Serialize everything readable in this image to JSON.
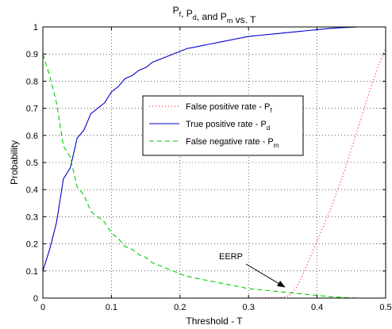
{
  "chart_data": {
    "type": "line",
    "title": {
      "parts": [
        {
          "text": "P",
          "sub": "f"
        },
        {
          "text": ", P",
          "sub": "d"
        },
        {
          "text": ", and P",
          "sub": "m"
        },
        {
          "text": " vs. T",
          "sub": ""
        }
      ]
    },
    "xlabel": "Threshold - T",
    "ylabel": "Probability",
    "xlim": [
      0,
      0.5
    ],
    "ylim": [
      0,
      1
    ],
    "xticks": [
      0,
      0.1,
      0.2,
      0.3,
      0.4,
      0.5
    ],
    "xtick_labels": [
      "0",
      "0.1",
      "0.2",
      "0.3",
      "0.4",
      "0.5"
    ],
    "yticks": [
      0,
      0.1,
      0.2,
      0.3,
      0.4,
      0.5,
      0.6,
      0.7,
      0.8,
      0.9,
      1
    ],
    "ytick_labels": [
      "0",
      "0.1",
      "0.2",
      "0.3",
      "0.4",
      "0.5",
      "0.6",
      "0.7",
      "0.8",
      "0.9",
      "1"
    ],
    "grid": true,
    "legend": {
      "placement": "center-right",
      "entries": [
        {
          "series": 0,
          "text": "False positive rate - P",
          "sub": "f"
        },
        {
          "series": 1,
          "text": "True positive rate - P",
          "sub": "d"
        },
        {
          "series": 2,
          "text": "False negative rate - P",
          "sub": "m"
        }
      ]
    },
    "series": [
      {
        "name": "False positive rate - Pf",
        "color": "#ff0000",
        "style": "dotted",
        "x": [
          0,
          0.1,
          0.2,
          0.3,
          0.35,
          0.36,
          0.37,
          0.38,
          0.39,
          0.4,
          0.41,
          0.42,
          0.43,
          0.44,
          0.45,
          0.46,
          0.47,
          0.48,
          0.49,
          0.5
        ],
        "y": [
          0,
          0,
          0,
          0,
          0.002,
          0.01,
          0.04,
          0.09,
          0.15,
          0.21,
          0.27,
          0.33,
          0.4,
          0.47,
          0.55,
          0.63,
          0.71,
          0.79,
          0.86,
          0.92
        ]
      },
      {
        "name": "True positive rate - Pd",
        "color": "#0000cc",
        "style": "solid",
        "x": [
          0,
          0.01,
          0.02,
          0.03,
          0.04,
          0.05,
          0.06,
          0.07,
          0.08,
          0.09,
          0.1,
          0.11,
          0.12,
          0.13,
          0.14,
          0.15,
          0.16,
          0.17,
          0.18,
          0.19,
          0.2,
          0.21,
          0.22,
          0.23,
          0.24,
          0.25,
          0.26,
          0.27,
          0.28,
          0.29,
          0.3,
          0.32,
          0.34,
          0.36,
          0.38,
          0.4,
          0.42,
          0.44,
          0.46,
          0.48,
          0.5
        ],
        "y": [
          0.1,
          0.18,
          0.28,
          0.44,
          0.48,
          0.59,
          0.62,
          0.68,
          0.7,
          0.72,
          0.76,
          0.78,
          0.81,
          0.82,
          0.84,
          0.85,
          0.87,
          0.88,
          0.89,
          0.9,
          0.91,
          0.92,
          0.925,
          0.93,
          0.935,
          0.94,
          0.945,
          0.95,
          0.955,
          0.96,
          0.965,
          0.97,
          0.975,
          0.98,
          0.985,
          0.99,
          0.995,
          0.998,
          1.0,
          1.0,
          1.0
        ]
      },
      {
        "name": "False negative rate - Pm",
        "color": "#00cc00",
        "style": "dashed",
        "x": [
          0,
          0.01,
          0.02,
          0.03,
          0.04,
          0.05,
          0.06,
          0.07,
          0.08,
          0.09,
          0.1,
          0.11,
          0.12,
          0.13,
          0.14,
          0.15,
          0.16,
          0.17,
          0.18,
          0.19,
          0.2,
          0.21,
          0.22,
          0.23,
          0.24,
          0.25,
          0.26,
          0.27,
          0.28,
          0.29,
          0.3,
          0.32,
          0.34,
          0.36,
          0.38,
          0.4,
          0.42,
          0.44,
          0.46,
          0.48,
          0.5
        ],
        "y": [
          0.9,
          0.82,
          0.72,
          0.56,
          0.52,
          0.41,
          0.38,
          0.32,
          0.3,
          0.28,
          0.24,
          0.22,
          0.19,
          0.18,
          0.16,
          0.15,
          0.13,
          0.12,
          0.11,
          0.1,
          0.09,
          0.08,
          0.075,
          0.07,
          0.065,
          0.06,
          0.055,
          0.05,
          0.045,
          0.04,
          0.035,
          0.03,
          0.025,
          0.02,
          0.015,
          0.01,
          0.005,
          0.002,
          0.0,
          0.0,
          0.0
        ]
      }
    ],
    "annotations": [
      {
        "text": "EERP",
        "x": 0.355,
        "y": 0.035
      }
    ]
  }
}
